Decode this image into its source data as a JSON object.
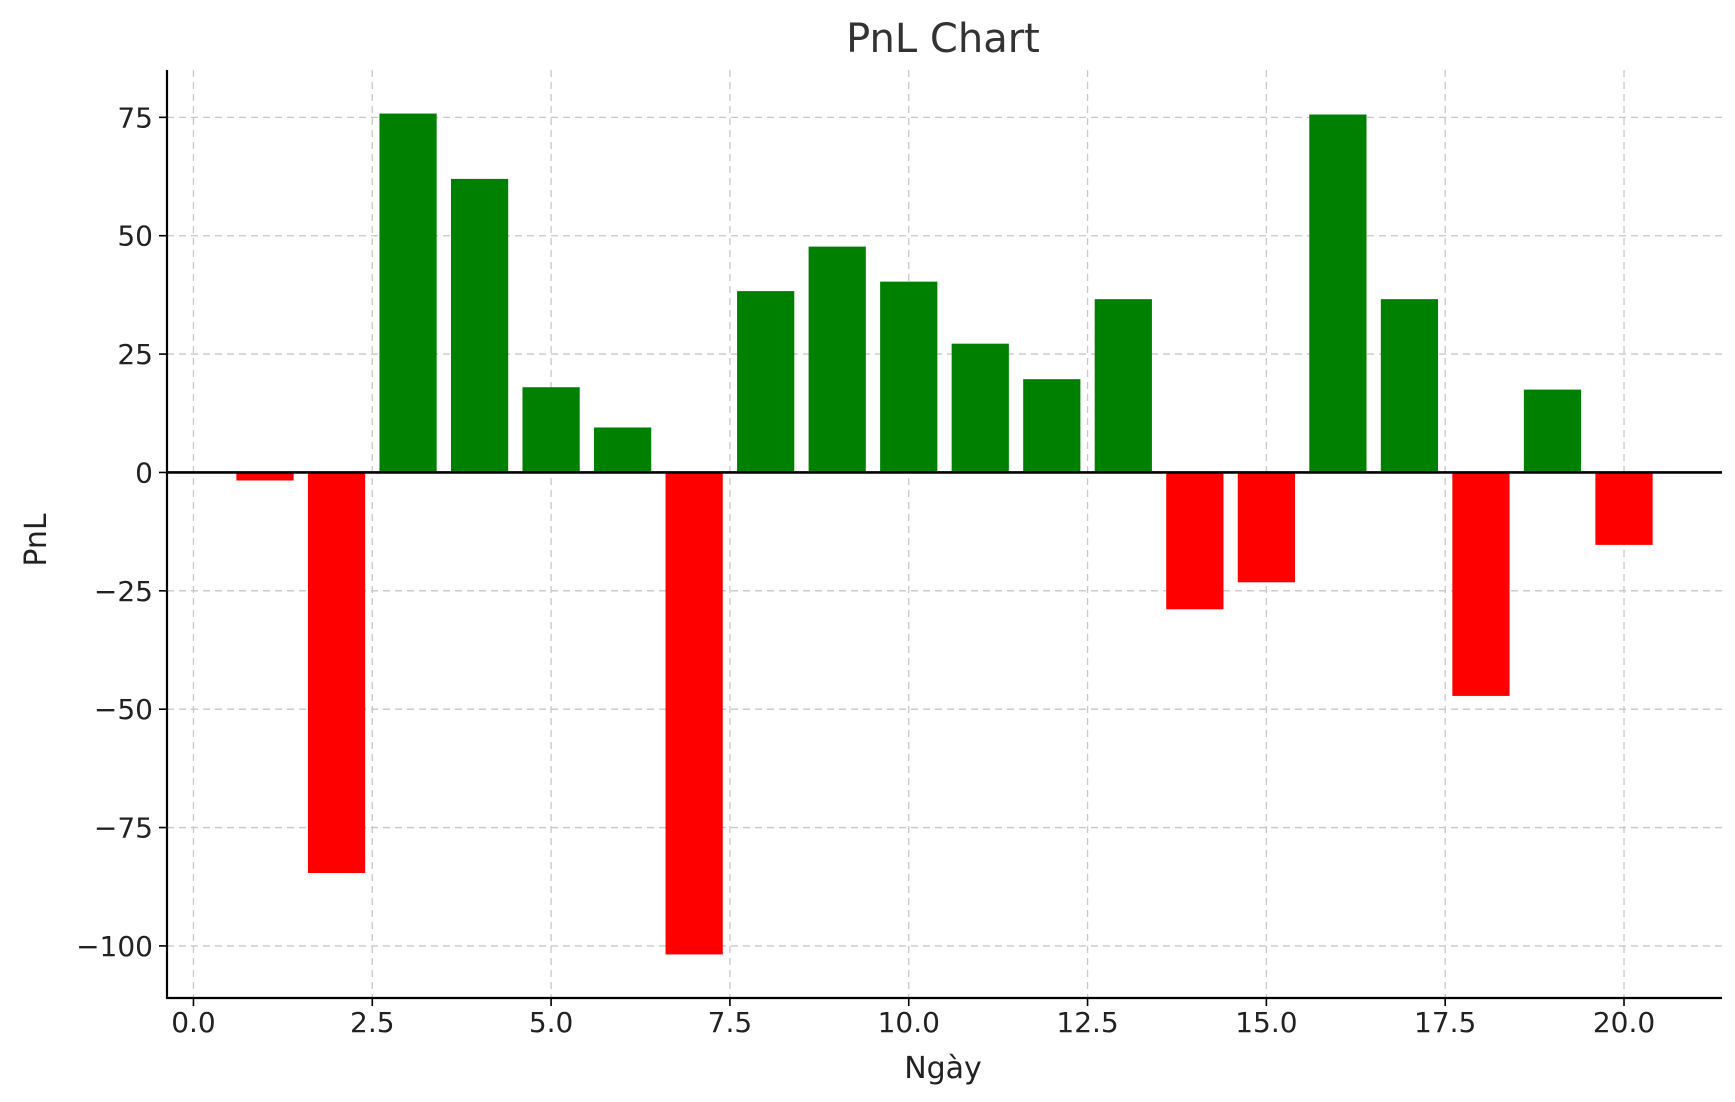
{
  "chart_data": {
    "type": "bar",
    "title": "PnL Chart",
    "xlabel": "Ngày",
    "ylabel": "PnL",
    "x": [
      1,
      2,
      3,
      4,
      5,
      6,
      7,
      8,
      9,
      10,
      11,
      12,
      13,
      14,
      15,
      16,
      17,
      18,
      19,
      20
    ],
    "values": [
      -1.7,
      -84.6,
      75.8,
      62,
      18,
      9.5,
      -101.8,
      38.3,
      47.7,
      40.3,
      27.2,
      19.7,
      36.6,
      -28.9,
      -23.2,
      75.6,
      36.6,
      -47.2,
      17.5,
      -15.3
    ],
    "xlim": [
      -0.37,
      21.37
    ],
    "ylim": [
      -111,
      85
    ],
    "xticks": [
      0.0,
      2.5,
      5.0,
      7.5,
      10.0,
      12.5,
      15.0,
      17.5,
      20.0
    ],
    "xtick_labels": [
      "0.0",
      "2.5",
      "5.0",
      "7.5",
      "10.0",
      "12.5",
      "15.0",
      "17.5",
      "20.0"
    ],
    "yticks": [
      75,
      50,
      25,
      0,
      -25,
      -50,
      -75,
      -100
    ],
    "ytick_labels": [
      "75",
      "50",
      "25",
      "0",
      "−25",
      "−50",
      "−75",
      "−100"
    ],
    "grid": true,
    "positive_color": "#008000",
    "negative_color": "#ff0000"
  }
}
